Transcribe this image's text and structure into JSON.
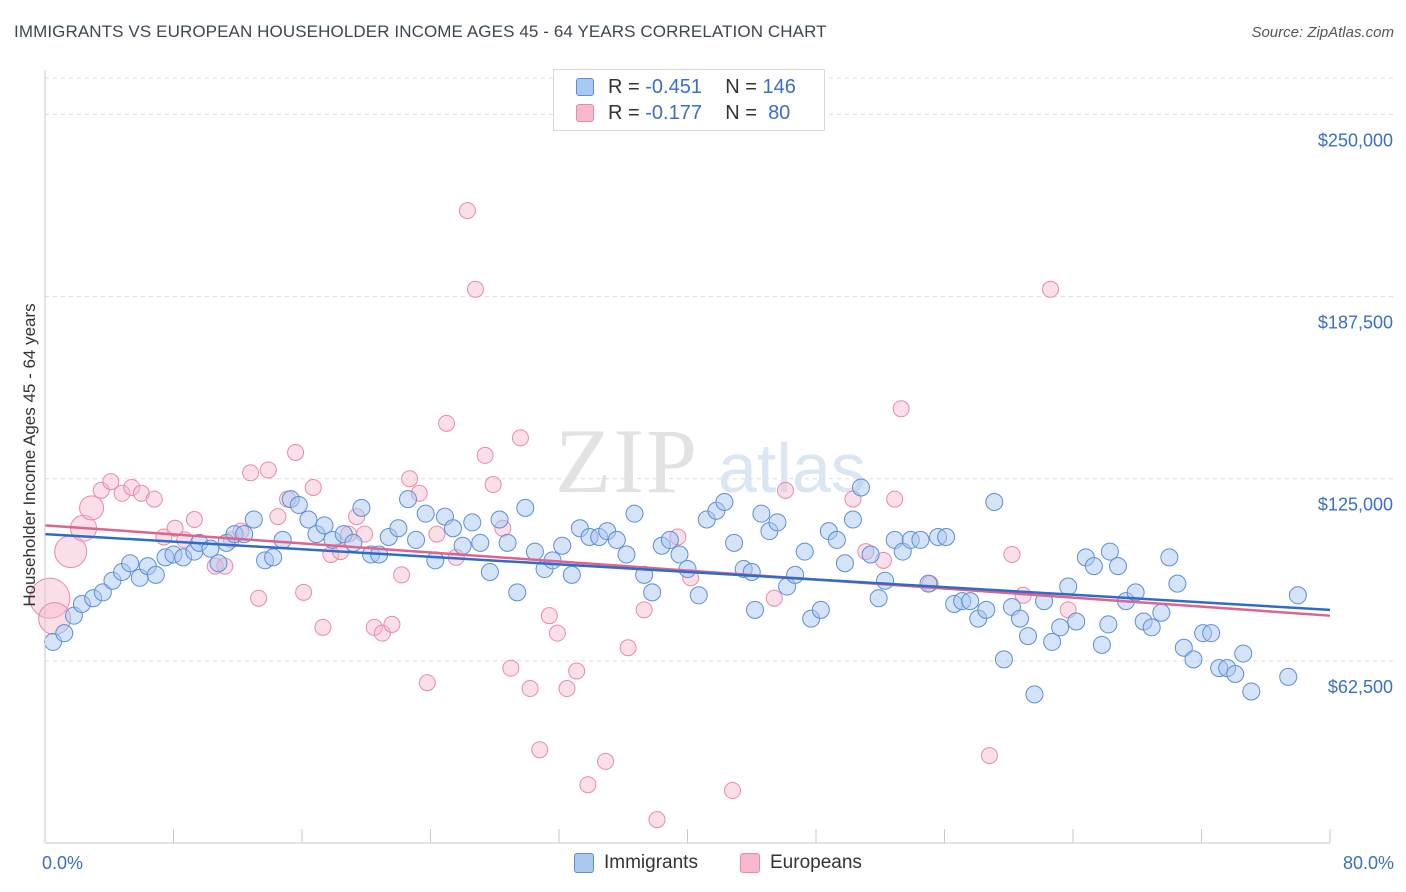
{
  "header": {
    "title": "IMMIGRANTS VS EUROPEAN HOUSEHOLDER INCOME AGES 45 - 64 YEARS CORRELATION CHART",
    "source": "Source: ZipAtlas.com"
  },
  "watermark": {
    "zip": "ZIP",
    "atlas": "atlas"
  },
  "legend_top": {
    "rows": [
      {
        "r_label": "R =",
        "r_value": "-0.451",
        "n_label": "N =",
        "n_value": "146"
      },
      {
        "r_label": "R =",
        "r_value": "-0.177",
        "n_label": "N =",
        "n_value": "80"
      }
    ]
  },
  "legend_bottom": {
    "immigrants": "Immigrants",
    "europeans": "Europeans"
  },
  "axis": {
    "x_min_label": "0.0%",
    "x_max_label": "80.0%"
  },
  "colors": {
    "immigrants_fill": "#a9c8f0",
    "immigrants_stroke": "#5b8fd6",
    "immigrants_line": "#2f6cc7",
    "europeans_fill": "#f6b9cc",
    "europeans_stroke": "#e88aa8",
    "europeans_line": "#e0628e",
    "tick_label": "#3a6fc4"
  },
  "chart_data": {
    "type": "scatter",
    "title": "IMMIGRANTS VS EUROPEAN HOUSEHOLDER INCOME AGES 45 - 64 YEARS CORRELATION CHART",
    "xlabel": "",
    "ylabel": "Householder Income Ages 45 - 64 years",
    "xlim": [
      0,
      80
    ],
    "ylim": [
      0,
      262500
    ],
    "y_ticks": [
      62500,
      125000,
      187500,
      250000
    ],
    "y_tick_labels": [
      "$62,500",
      "$125,000",
      "$187,500",
      "$250,000"
    ],
    "grid": true,
    "legend_position": "top-center",
    "series": [
      {
        "name": "Immigrants",
        "R": -0.451,
        "N": 146,
        "trend": {
          "x": [
            0,
            80
          ],
          "y": [
            106000,
            80000
          ]
        },
        "points": [
          [
            0.5,
            69000
          ],
          [
            1.2,
            72000
          ],
          [
            1.8,
            78000
          ],
          [
            2.3,
            82000
          ],
          [
            3.0,
            84000
          ],
          [
            3.6,
            86000
          ],
          [
            4.2,
            90000
          ],
          [
            4.8,
            93000
          ],
          [
            5.3,
            96000
          ],
          [
            5.9,
            91000
          ],
          [
            6.4,
            95000
          ],
          [
            6.9,
            92000
          ],
          [
            7.5,
            98000
          ],
          [
            8.0,
            99000
          ],
          [
            8.6,
            98000
          ],
          [
            9.3,
            100000
          ],
          [
            9.6,
            103000
          ],
          [
            10.3,
            101000
          ],
          [
            10.8,
            96000
          ],
          [
            11.3,
            103000
          ],
          [
            11.8,
            106000
          ],
          [
            12.4,
            106000
          ],
          [
            13.0,
            111000
          ],
          [
            13.7,
            97000
          ],
          [
            14.2,
            98000
          ],
          [
            14.8,
            104000
          ],
          [
            15.3,
            118000
          ],
          [
            15.8,
            116000
          ],
          [
            16.4,
            111000
          ],
          [
            16.9,
            106000
          ],
          [
            17.4,
            109000
          ],
          [
            17.9,
            104000
          ],
          [
            18.6,
            106000
          ],
          [
            19.2,
            103000
          ],
          [
            19.7,
            115000
          ],
          [
            20.3,
            99000
          ],
          [
            20.8,
            99000
          ],
          [
            21.4,
            105000
          ],
          [
            22.0,
            108000
          ],
          [
            22.6,
            118000
          ],
          [
            23.1,
            104000
          ],
          [
            23.7,
            113000
          ],
          [
            24.3,
            97000
          ],
          [
            24.9,
            112000
          ],
          [
            25.4,
            108000
          ],
          [
            26.0,
            102000
          ],
          [
            26.6,
            110000
          ],
          [
            27.1,
            103000
          ],
          [
            27.7,
            93000
          ],
          [
            28.3,
            111000
          ],
          [
            28.8,
            103000
          ],
          [
            29.4,
            86000
          ],
          [
            29.9,
            115000
          ],
          [
            30.5,
            100000
          ],
          [
            31.1,
            94000
          ],
          [
            31.6,
            97000
          ],
          [
            32.2,
            102000
          ],
          [
            32.8,
            92000
          ],
          [
            33.3,
            108000
          ],
          [
            33.9,
            105000
          ],
          [
            34.5,
            105000
          ],
          [
            35.0,
            107000
          ],
          [
            35.6,
            104000
          ],
          [
            36.2,
            99000
          ],
          [
            36.7,
            113000
          ],
          [
            37.3,
            92000
          ],
          [
            37.8,
            86000
          ],
          [
            38.4,
            102000
          ],
          [
            38.9,
            104000
          ],
          [
            39.5,
            99000
          ],
          [
            40.0,
            94000
          ],
          [
            40.7,
            85000
          ],
          [
            41.2,
            111000
          ],
          [
            41.8,
            114000
          ],
          [
            42.3,
            117000
          ],
          [
            42.9,
            103000
          ],
          [
            43.5,
            94000
          ],
          [
            44.0,
            93000
          ],
          [
            44.6,
            113000
          ],
          [
            45.1,
            107000
          ],
          [
            45.6,
            110000
          ],
          [
            46.2,
            88000
          ],
          [
            46.7,
            92000
          ],
          [
            47.3,
            100000
          ],
          [
            47.7,
            77000
          ],
          [
            48.3,
            80000
          ],
          [
            48.8,
            107000
          ],
          [
            49.3,
            104000
          ],
          [
            49.8,
            96000
          ],
          [
            50.3,
            111000
          ],
          [
            50.8,
            122000
          ],
          [
            51.4,
            99000
          ],
          [
            51.9,
            84000
          ],
          [
            52.3,
            90000
          ],
          [
            52.9,
            104000
          ],
          [
            53.4,
            100000
          ],
          [
            53.9,
            104000
          ],
          [
            54.5,
            104000
          ],
          [
            55.0,
            89000
          ],
          [
            55.6,
            105000
          ],
          [
            56.1,
            105000
          ],
          [
            56.6,
            82000
          ],
          [
            57.1,
            83000
          ],
          [
            57.6,
            83000
          ],
          [
            58.1,
            77000
          ],
          [
            58.6,
            80000
          ],
          [
            59.1,
            117000
          ],
          [
            59.7,
            63000
          ],
          [
            60.2,
            81000
          ],
          [
            60.7,
            77000
          ],
          [
            61.2,
            71000
          ],
          [
            61.6,
            51000
          ],
          [
            62.2,
            83000
          ],
          [
            62.7,
            69000
          ],
          [
            63.2,
            74000
          ],
          [
            63.7,
            88000
          ],
          [
            64.2,
            76000
          ],
          [
            64.8,
            98000
          ],
          [
            65.3,
            95000
          ],
          [
            65.8,
            68000
          ],
          [
            66.3,
            100000
          ],
          [
            66.8,
            95000
          ],
          [
            67.3,
            83000
          ],
          [
            67.9,
            86000
          ],
          [
            68.4,
            76000
          ],
          [
            68.9,
            74000
          ],
          [
            69.5,
            79000
          ],
          [
            70.0,
            98000
          ],
          [
            70.5,
            89000
          ],
          [
            70.9,
            67000
          ],
          [
            71.5,
            63000
          ],
          [
            72.1,
            72000
          ],
          [
            72.6,
            72000
          ],
          [
            73.1,
            60000
          ],
          [
            73.6,
            60000
          ],
          [
            74.1,
            58000
          ],
          [
            74.6,
            65000
          ],
          [
            75.1,
            52000
          ],
          [
            77.4,
            57000
          ],
          [
            78.0,
            85000
          ],
          [
            66.2,
            75000
          ],
          [
            44.2,
            80000
          ]
        ]
      },
      {
        "name": "Europeans",
        "R": -0.177,
        "N": 80,
        "trend": {
          "x": [
            0,
            80
          ],
          "y": [
            109000,
            78000
          ]
        },
        "points": [
          [
            0.3,
            84000
          ],
          [
            0.6,
            77000
          ],
          [
            1.6,
            100000
          ],
          [
            2.4,
            108000
          ],
          [
            2.9,
            115000
          ],
          [
            3.5,
            121000
          ],
          [
            4.1,
            124000
          ],
          [
            4.8,
            120000
          ],
          [
            5.4,
            122000
          ],
          [
            6.0,
            120000
          ],
          [
            6.8,
            118000
          ],
          [
            7.4,
            105000
          ],
          [
            8.1,
            108000
          ],
          [
            8.7,
            104000
          ],
          [
            9.3,
            111000
          ],
          [
            10.6,
            95000
          ],
          [
            11.2,
            95000
          ],
          [
            11.6,
            104000
          ],
          [
            12.2,
            107000
          ],
          [
            12.8,
            127000
          ],
          [
            13.3,
            84000
          ],
          [
            13.9,
            128000
          ],
          [
            14.5,
            112000
          ],
          [
            15.1,
            118000
          ],
          [
            15.6,
            134000
          ],
          [
            16.1,
            86000
          ],
          [
            16.7,
            122000
          ],
          [
            17.3,
            74000
          ],
          [
            17.8,
            99000
          ],
          [
            18.4,
            100000
          ],
          [
            18.9,
            106000
          ],
          [
            19.4,
            112000
          ],
          [
            19.9,
            106000
          ],
          [
            20.5,
            74000
          ],
          [
            21.0,
            72000
          ],
          [
            21.6,
            75000
          ],
          [
            22.2,
            92000
          ],
          [
            22.7,
            125000
          ],
          [
            23.3,
            120000
          ],
          [
            23.8,
            55000
          ],
          [
            24.4,
            106000
          ],
          [
            25.0,
            144000
          ],
          [
            25.6,
            98000
          ],
          [
            26.3,
            217000
          ],
          [
            26.8,
            190000
          ],
          [
            27.4,
            133000
          ],
          [
            27.9,
            123000
          ],
          [
            28.5,
            108000
          ],
          [
            29.0,
            60000
          ],
          [
            29.6,
            139000
          ],
          [
            30.2,
            53000
          ],
          [
            30.8,
            32000
          ],
          [
            31.4,
            78000
          ],
          [
            31.9,
            72000
          ],
          [
            32.5,
            53000
          ],
          [
            33.1,
            59000
          ],
          [
            33.8,
            20000
          ],
          [
            34.9,
            28000
          ],
          [
            36.3,
            67000
          ],
          [
            37.3,
            80000
          ],
          [
            38.1,
            8000
          ],
          [
            39.4,
            105000
          ],
          [
            40.2,
            91000
          ],
          [
            42.8,
            18000
          ],
          [
            45.4,
            84000
          ],
          [
            46.1,
            121000
          ],
          [
            50.3,
            118000
          ],
          [
            51.1,
            100000
          ],
          [
            52.2,
            97000
          ],
          [
            52.9,
            118000
          ],
          [
            53.3,
            149000
          ],
          [
            55.1,
            89000
          ],
          [
            58.8,
            30000
          ],
          [
            60.2,
            99000
          ],
          [
            60.9,
            85000
          ],
          [
            62.6,
            190000
          ],
          [
            63.7,
            80000
          ]
        ]
      }
    ]
  }
}
